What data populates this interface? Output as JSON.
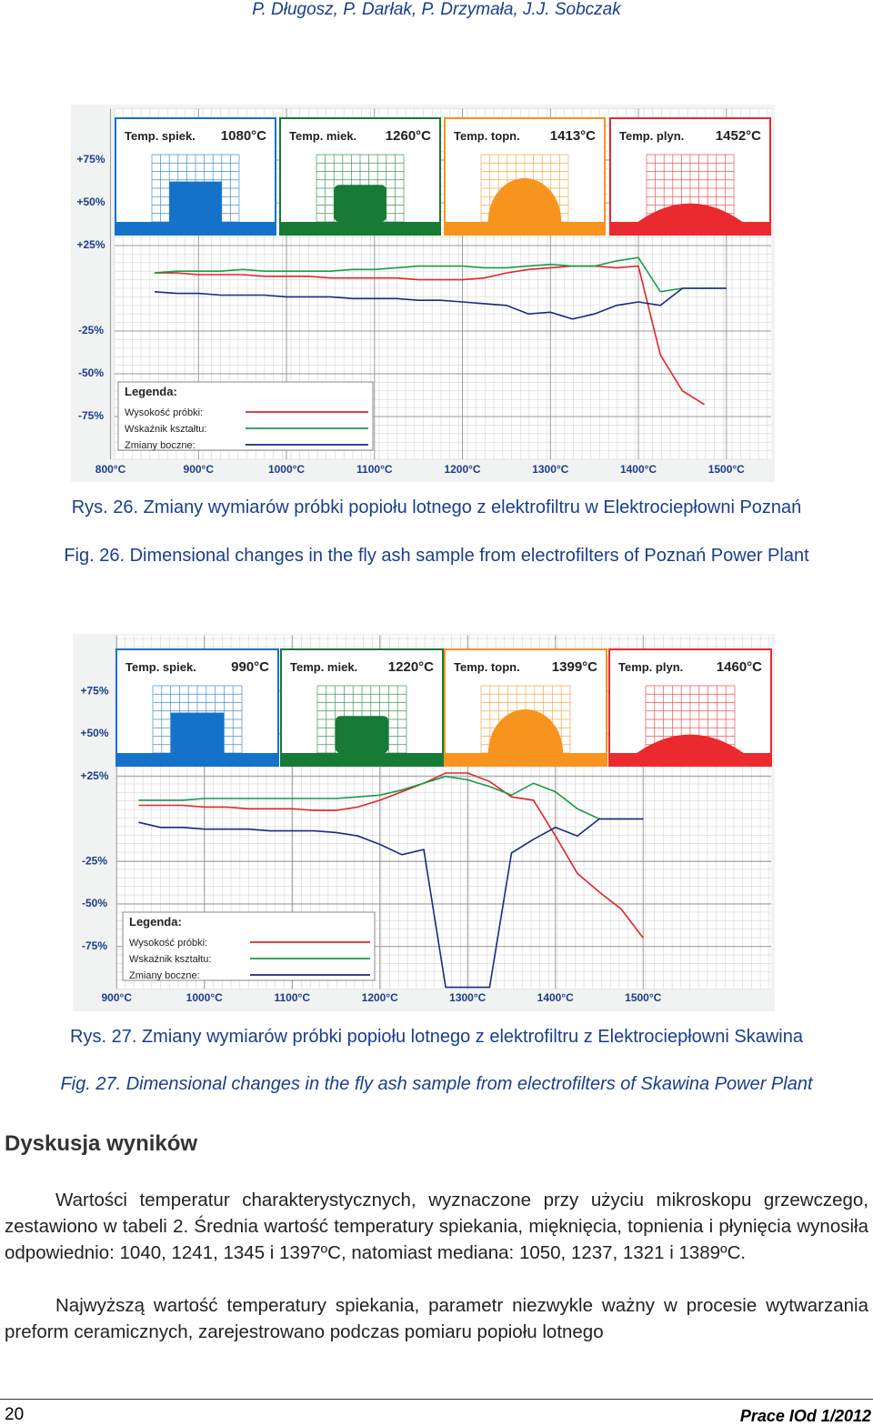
{
  "header": {
    "authors": "P. Długosz, P. Darłak, P. Drzymała, J.J. Sobczak"
  },
  "chart_data": [
    {
      "type": "line",
      "legend_title": "Legenda:",
      "panels": [
        {
          "label": "Temp. spiek.",
          "temp": "1080°C",
          "color": "#1473c9"
        },
        {
          "label": "Temp. miek.",
          "temp": "1260°C",
          "color": "#177a35"
        },
        {
          "label": "Temp. topn.",
          "temp": "1413°C",
          "color": "#f7941d"
        },
        {
          "label": "Temp. plyn.",
          "temp": "1452°C",
          "color": "#ea2a2e"
        }
      ],
      "x": [
        850,
        875,
        900,
        925,
        950,
        975,
        1000,
        1025,
        1050,
        1075,
        1100,
        1125,
        1150,
        1175,
        1200,
        1225,
        1250,
        1275,
        1300,
        1325,
        1350,
        1375,
        1400,
        1425,
        1450,
        1475,
        1500
      ],
      "series": [
        {
          "name": "Wysokość próbki:",
          "color": "#e0262a",
          "values": [
            9,
            9,
            8,
            8,
            8,
            7,
            7,
            7,
            6,
            6,
            6,
            6,
            5,
            5,
            5,
            6,
            9,
            11,
            12,
            13,
            13,
            12,
            13,
            -39,
            -60,
            -68,
            null
          ]
        },
        {
          "name": "Wskaźnik kształtu:",
          "color": "#1a9a4a",
          "values": [
            9,
            10,
            10,
            10,
            11,
            10,
            10,
            10,
            10,
            11,
            11,
            12,
            13,
            13,
            13,
            12,
            12,
            13,
            14,
            13,
            13,
            16,
            18,
            -2,
            0,
            0,
            0
          ]
        },
        {
          "name": "Zmiany boczne:",
          "color": "#1a2a80",
          "values": [
            -2,
            -3,
            -3,
            -4,
            -4,
            -4,
            -5,
            -5,
            -5,
            -6,
            -6,
            -6,
            -7,
            -7,
            -8,
            -9,
            -10,
            -15,
            -14,
            -18,
            -15,
            -10,
            -8,
            -10,
            0,
            0,
            0
          ]
        }
      ],
      "xlim": [
        755,
        1555
      ],
      "xticks": [
        {
          "value": 800,
          "label": "800°C"
        },
        {
          "value": 900,
          "label": "900°C"
        },
        {
          "value": 1000,
          "label": "1000°C"
        },
        {
          "value": 1100,
          "label": "1100°C"
        },
        {
          "value": 1200,
          "label": "1200°C"
        },
        {
          "value": 1300,
          "label": "1300°C"
        },
        {
          "value": 1400,
          "label": "1400°C"
        },
        {
          "value": 1500,
          "label": "1500°C"
        }
      ],
      "ylim": [
        -100,
        105
      ],
      "yticks": [
        {
          "value": 75,
          "label": "+75%"
        },
        {
          "value": 50,
          "label": "+50%"
        },
        {
          "value": 25,
          "label": "+25%"
        },
        {
          "value": -25,
          "label": "-25%"
        },
        {
          "value": -50,
          "label": "-50%"
        },
        {
          "value": -75,
          "label": "-75%"
        }
      ],
      "grid": true
    },
    {
      "type": "line",
      "legend_title": "Legenda:",
      "panels": [
        {
          "label": "Temp. spiek.",
          "temp": "990°C",
          "color": "#1473c9"
        },
        {
          "label": "Temp. miek.",
          "temp": "1220°C",
          "color": "#177a35"
        },
        {
          "label": "Temp. topn.",
          "temp": "1399°C",
          "color": "#f7941d"
        },
        {
          "label": "Temp. plyn.",
          "temp": "1460°C",
          "color": "#ea2a2e"
        }
      ],
      "x": [
        925,
        950,
        975,
        1000,
        1025,
        1050,
        1075,
        1100,
        1125,
        1150,
        1175,
        1200,
        1225,
        1250,
        1275,
        1300,
        1325,
        1350,
        1375,
        1400,
        1425,
        1450,
        1475,
        1500
      ],
      "series": [
        {
          "name": "Wysokość próbki:",
          "color": "#e0262a",
          "values": [
            8,
            8,
            8,
            7,
            7,
            6,
            6,
            6,
            5,
            5,
            7,
            11,
            16,
            21,
            27,
            27,
            22,
            13,
            11,
            -10,
            -32,
            -43,
            -53,
            -70
          ]
        },
        {
          "name": "Wskaźnik kształtu:",
          "color": "#1a9a4a",
          "values": [
            11,
            11,
            11,
            12,
            12,
            12,
            12,
            12,
            12,
            12,
            13,
            14,
            17,
            21,
            25,
            23,
            19,
            14,
            21,
            16,
            6,
            0,
            0,
            0
          ]
        },
        {
          "name": "Zmiany boczne:",
          "color": "#1a2a80",
          "values": [
            -2,
            -5,
            -5,
            -6,
            -6,
            -6,
            -7,
            -7,
            -7,
            -8,
            -10,
            -15,
            -21,
            -18,
            -99,
            -99,
            -99,
            -20,
            -12,
            -5,
            -10,
            0,
            0,
            0
          ]
        }
      ],
      "xlim": [
        850,
        1650
      ],
      "xticks": [
        {
          "value": 900,
          "label": "900°C"
        },
        {
          "value": 1000,
          "label": "1000°C"
        },
        {
          "value": 1100,
          "label": "1100°C"
        },
        {
          "value": 1200,
          "label": "1200°C"
        },
        {
          "value": 1300,
          "label": "1300°C"
        },
        {
          "value": 1400,
          "label": "1400°C"
        },
        {
          "value": 1500,
          "label": "1500°C"
        }
      ],
      "ylim": [
        -100,
        108
      ],
      "yticks": [
        {
          "value": 75,
          "label": "+75%"
        },
        {
          "value": 50,
          "label": "+50%"
        },
        {
          "value": 25,
          "label": "+25%"
        },
        {
          "value": -25,
          "label": "-25%"
        },
        {
          "value": -50,
          "label": "-50%"
        },
        {
          "value": -75,
          "label": "-75%"
        }
      ],
      "grid": true
    }
  ],
  "figures": [
    {
      "caption_pl": "Rys. 26. Zmiany wymiarów próbki popiołu lotnego z elektrofiltru w Elektrociepłowni Poznań",
      "caption_en": "Fig. 26. Dimensional changes in the fly ash sample from electrofilters of Poznań Power Plant"
    },
    {
      "caption_pl": "Rys. 27. Zmiany wymiarów próbki popiołu lotnego z elektrofiltru z Elektrociepłowni Skawina",
      "caption_en": "Fig. 27. Dimensional changes in the fly ash sample from electrofilters of Skawina Power Plant"
    }
  ],
  "section": {
    "heading": "Dyskusja wyników",
    "paragraphs": [
      "Wartości temperatur charakterystycznych, wyznaczone przy użyciu mikroskopu grzewczego, zestawiono w tabeli 2. Średnia wartość temperatury spiekania, mięknięcia, topnienia i płynięcia wynosiła odpowiednio: 1040, 1241, 1345 i 1397ºC, natomiast mediana: 1050, 1237, 1321 i 1389ºC.",
      "Najwyższą wartość temperatury spiekania, parametr niezwykle ważny w procesie wytwarzania preform ceramicznych, zarejestrowano podczas pomiaru popiołu lotnego"
    ]
  },
  "footer": {
    "page": "20",
    "journal": "Prace IOd 1/2012"
  }
}
